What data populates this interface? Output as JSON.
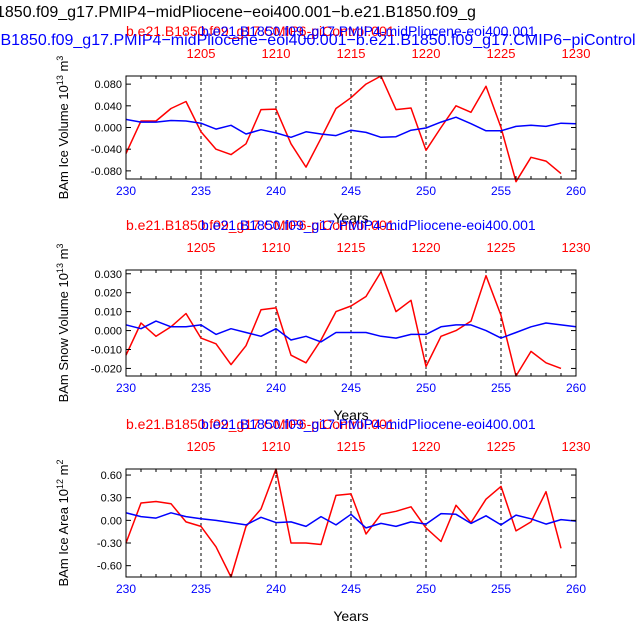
{
  "figure": {
    "title_line1": "1850.f09_g17.PMIP4−midPliocene−eoi400.001−b.e21.B1850.f09_g",
    "title_line2": ".B1850.f09_g17.PMIP4−midPliocene−eoi400.001−b.e21.B1850.f09_g17.CMIP6−piControl"
  },
  "colors": {
    "red": "#ff0000",
    "blue": "#0000ff",
    "black": "#000000"
  },
  "chart_data": [
    {
      "type": "line",
      "ylabel": "BAm Ice Volume 10^13 m^3",
      "xlabel": "Years",
      "legend_red": "b.e21.B1850.f09_g17.CMIP6-piControl.001",
      "legend_blue": "b.e21.B1850.f09_g17.PMIP4-midPliocene-eoi400.001",
      "xlim": [
        230,
        260
      ],
      "x_ticks": [
        230,
        235,
        240,
        245,
        250,
        255,
        260
      ],
      "top_xlim": [
        1200,
        1230
      ],
      "top_ticks": [
        1205,
        1210,
        1215,
        1220,
        1225,
        1230
      ],
      "ylim": [
        -0.095,
        0.095
      ],
      "y_ticks": [
        0.08,
        0.04,
        0.0,
        -0.04,
        -0.08
      ],
      "y_tick_labels": [
        "0.080",
        "0.040",
        "0.000",
        "-0.040",
        "-0.080"
      ],
      "series": [
        {
          "name": "b.e21.B1850.f09_g17.CMIP6-piControl.001",
          "color": "red",
          "values": [
            -0.048,
            0.012,
            0.012,
            0.035,
            0.048,
            -0.008,
            -0.04,
            -0.05,
            -0.03,
            0.033,
            0.034,
            -0.03,
            -0.073,
            -0.02,
            0.035,
            0.055,
            0.08,
            0.095,
            0.033,
            0.036,
            -0.042,
            0.0,
            0.04,
            0.028,
            0.076,
            0.0,
            -0.1,
            -0.055,
            -0.062,
            -0.085
          ]
        },
        {
          "name": "b.e21.B1850.f09_g17.PMIP4-midPliocene-eoi400.001",
          "color": "blue",
          "values": [
            0.015,
            0.01,
            0.01,
            0.013,
            0.012,
            0.008,
            -0.003,
            0.004,
            -0.012,
            -0.004,
            -0.01,
            -0.018,
            -0.008,
            -0.012,
            -0.015,
            -0.005,
            -0.009,
            -0.018,
            -0.017,
            -0.005,
            -0.001,
            0.01,
            0.019,
            0.007,
            -0.006,
            -0.006,
            0.002,
            0.004,
            0.002,
            0.008,
            0.007
          ]
        }
      ]
    },
    {
      "type": "line",
      "ylabel": "BAm Snow Volume 10^13 m^3",
      "xlabel": "Years",
      "legend_red": "b.e21.B1850.f09_g17.CMIP6-piControl.001",
      "legend_blue": "b.e21.B1850.f09_g17.PMIP4-midPliocene-eoi400.001",
      "xlim": [
        230,
        260
      ],
      "x_ticks": [
        230,
        235,
        240,
        245,
        250,
        255,
        260
      ],
      "top_xlim": [
        1200,
        1230
      ],
      "top_ticks": [
        1205,
        1210,
        1215,
        1220,
        1225,
        1230
      ],
      "ylim": [
        -0.024,
        0.032
      ],
      "y_ticks": [
        0.03,
        0.02,
        0.01,
        0.0,
        -0.01,
        -0.02
      ],
      "y_tick_labels": [
        "0.030",
        "0.020",
        "0.010",
        "0.000",
        "-0.010",
        "-0.020"
      ],
      "series": [
        {
          "name": "b.e21.B1850.f09_g17.CMIP6-piControl.001",
          "color": "red",
          "values": [
            -0.013,
            0.004,
            -0.003,
            0.002,
            0.009,
            -0.004,
            -0.007,
            -0.018,
            -0.008,
            0.011,
            0.012,
            -0.013,
            -0.017,
            -0.005,
            0.01,
            0.013,
            0.018,
            0.031,
            0.01,
            0.016,
            -0.019,
            -0.003,
            0.0,
            0.005,
            0.029,
            0.008,
            -0.024,
            -0.011,
            -0.017,
            -0.02
          ]
        },
        {
          "name": "b.e21.B1850.f09_g17.PMIP4-midPliocene-eoi400.001",
          "color": "blue",
          "values": [
            0.003,
            0.001,
            0.005,
            0.002,
            0.002,
            0.003,
            -0.002,
            0.001,
            -0.001,
            -0.003,
            0.001,
            -0.005,
            -0.003,
            -0.006,
            -0.001,
            -0.001,
            -0.001,
            -0.003,
            -0.004,
            -0.002,
            -0.002,
            0.002,
            0.003,
            0.003,
            0.0,
            -0.004,
            -0.001,
            0.002,
            0.004,
            0.003,
            0.002
          ]
        }
      ]
    },
    {
      "type": "line",
      "ylabel": "BAm Ice Area 10^12 m^2",
      "xlabel": "Years",
      "legend_red": "b.e21.B1850.f09_g17.CMIP6-piControl.001",
      "legend_blue": "b.e21.B1850.f09_g17.PMIP4-midPliocene-eoi400.001",
      "xlim": [
        230,
        260
      ],
      "x_ticks": [
        230,
        235,
        240,
        245,
        250,
        255,
        260
      ],
      "top_xlim": [
        1200,
        1230
      ],
      "top_ticks": [
        1205,
        1210,
        1215,
        1220,
        1225,
        1230
      ],
      "ylim": [
        -0.75,
        0.68
      ],
      "y_ticks": [
        0.6,
        0.3,
        0.0,
        -0.3,
        -0.6
      ],
      "y_tick_labels": [
        "0.60",
        "0.30",
        "0.00",
        "-0.30",
        "-0.60"
      ],
      "series": [
        {
          "name": "b.e21.B1850.f09_g17.CMIP6-piControl.001",
          "color": "red",
          "values": [
            -0.3,
            0.23,
            0.25,
            0.22,
            -0.02,
            -0.08,
            -0.35,
            -0.75,
            -0.08,
            0.15,
            0.68,
            -0.3,
            -0.3,
            -0.32,
            0.33,
            0.35,
            -0.18,
            0.08,
            0.12,
            0.18,
            -0.1,
            -0.28,
            0.2,
            -0.03,
            0.28,
            0.45,
            -0.14,
            -0.02,
            0.38,
            -0.37
          ]
        },
        {
          "name": "b.e21.B1850.f09_g17.PMIP4-midPliocene-eoi400.001",
          "color": "blue",
          "values": [
            0.1,
            0.05,
            0.03,
            0.1,
            0.05,
            0.02,
            0.0,
            -0.03,
            -0.06,
            0.04,
            -0.03,
            -0.02,
            -0.08,
            0.05,
            -0.06,
            0.08,
            -0.1,
            -0.04,
            -0.08,
            -0.02,
            -0.05,
            0.09,
            0.08,
            -0.04,
            0.06,
            -0.06,
            0.07,
            0.02,
            -0.05,
            0.01,
            -0.01
          ]
        }
      ]
    }
  ]
}
